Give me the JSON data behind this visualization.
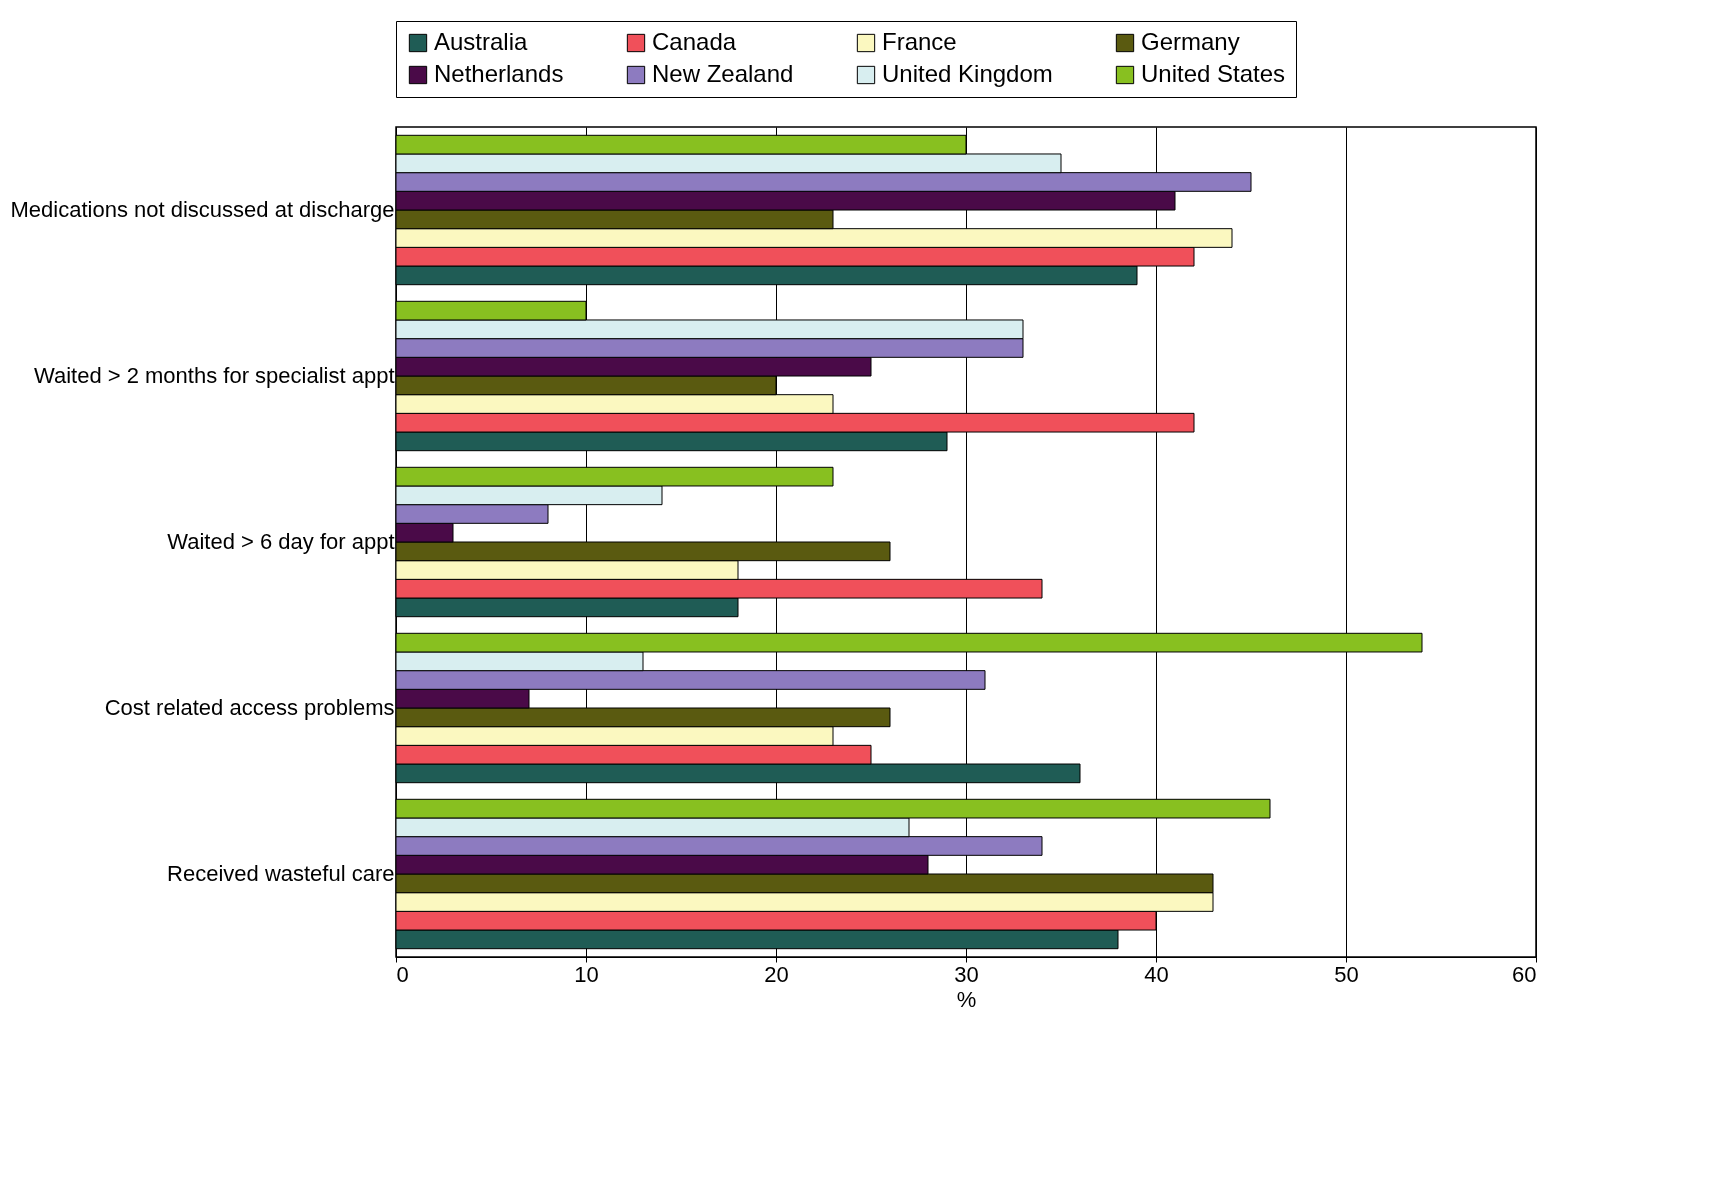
{
  "chart_data": {
    "type": "bar",
    "orientation": "horizontal",
    "xlabel": "%",
    "categories": [
      "Medications not discussed at discharge",
      "Waited > 2 months for specialist appt",
      "Waited > 6 day for appt",
      "Cost related access problems",
      "Received wasteful care"
    ],
    "series": [
      {
        "name": "Australia",
        "color": "#1f5c55",
        "values": [
          39,
          29,
          18,
          36,
          38
        ]
      },
      {
        "name": "Canada",
        "color": "#f0505a",
        "values": [
          42,
          42,
          34,
          25,
          40
        ]
      },
      {
        "name": "France",
        "color": "#fbf8c0",
        "values": [
          44,
          23,
          18,
          23,
          43
        ]
      },
      {
        "name": "Germany",
        "color": "#5a5a10",
        "values": [
          23,
          20,
          26,
          26,
          43
        ]
      },
      {
        "name": "Netherlands",
        "color": "#4a0a48",
        "values": [
          41,
          25,
          3,
          7,
          28
        ]
      },
      {
        "name": "New Zealand",
        "color": "#8d7bc0",
        "values": [
          45,
          33,
          8,
          31,
          34
        ]
      },
      {
        "name": "United Kingdom",
        "color": "#d8eef0",
        "values": [
          35,
          33,
          14,
          13,
          27
        ]
      },
      {
        "name": "United States",
        "color": "#88c020",
        "values": [
          30,
          10,
          23,
          54,
          46
        ]
      }
    ],
    "xlim": [
      0,
      60
    ],
    "xticks": [
      0,
      10,
      20,
      30,
      40,
      50,
      60
    ],
    "grid": "x",
    "legend": "top"
  }
}
